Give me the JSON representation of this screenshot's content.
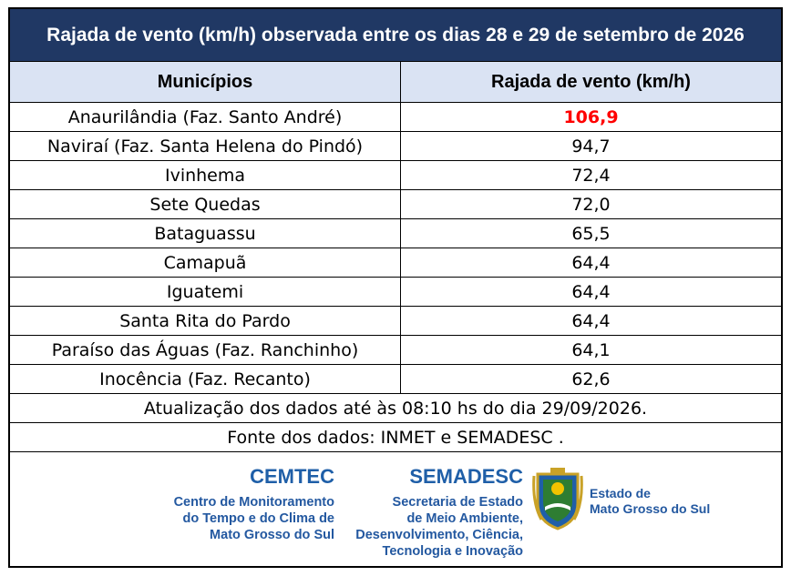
{
  "title": "Rajada de vento (km/h) observada entre os dias 28 e 29 de setembro de 2026",
  "table": {
    "headers": [
      "Municípios",
      "Rajada de vento (km/h)"
    ],
    "rows": [
      {
        "municipio": "Anaurilândia (Faz. Santo André)",
        "rajada": "106,9"
      },
      {
        "municipio": "Naviraí (Faz. Santa Helena do Pindó)",
        "rajada": "94,7"
      },
      {
        "municipio": "Ivinhema",
        "rajada": "72,4"
      },
      {
        "municipio": "Sete Quedas",
        "rajada": "72,0"
      },
      {
        "municipio": "Bataguassu",
        "rajada": "65,5"
      },
      {
        "municipio": "Camapuã",
        "rajada": "64,4"
      },
      {
        "municipio": "Iguatemi",
        "rajada": "64,4"
      },
      {
        "municipio": "Santa Rita do Pardo",
        "rajada": "64,4"
      },
      {
        "municipio": "Paraíso das Águas (Faz. Ranchinho)",
        "rajada": "64,1"
      },
      {
        "municipio": "Inocência (Faz. Recanto)",
        "rajada": "62,6"
      }
    ]
  },
  "notes": {
    "update": "Atualização dos dados até às 08:10 hs do dia 29/09/2026.",
    "source": "Fonte dos dados: INMET e SEMADESC ."
  },
  "logos": {
    "cemtec": {
      "name": "CEMTEC",
      "lines": [
        "Centro de Monitoramento",
        "do Tempo e do Clima de",
        "Mato Grosso do Sul"
      ]
    },
    "semadesc": {
      "name": "SEMADESC",
      "lines": [
        "Secretaria de Estado",
        "de Meio Ambiente,",
        "Desenvolvimento, Ciência,",
        "Tecnologia e Inovação"
      ]
    },
    "estado": {
      "lines": [
        "Estado de",
        "Mato Grosso do Sul"
      ],
      "icon": "coat-of-arms-icon"
    }
  },
  "colors": {
    "title_bg": "#203864",
    "header_bg": "#dae3f3",
    "highlight": "#ff0000",
    "brand": "#1f5fa8"
  }
}
